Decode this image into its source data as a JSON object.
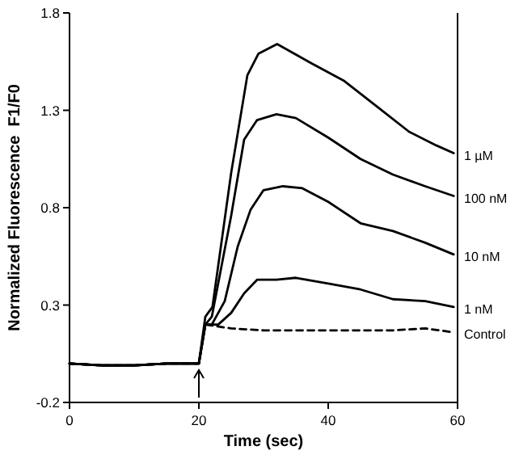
{
  "chart_data": {
    "type": "line",
    "xlabel": "Time (sec)",
    "ylabel": "Normalized Fluorescence  F1/F0",
    "xlim": [
      0,
      60
    ],
    "ylim": [
      -0.2,
      1.8
    ],
    "xticks": [
      0,
      20,
      40,
      60
    ],
    "yticks": [
      -0.2,
      0.3,
      0.8,
      1.3,
      1.8
    ],
    "grid": false,
    "marker": "none",
    "series": [
      {
        "name": "1 µM",
        "color": "#000000",
        "x": [
          0,
          5,
          10,
          15,
          20,
          21,
          22.1,
          25,
          27.5,
          29.2,
          32.1,
          37.5,
          42.5,
          47.5,
          52.5,
          56.7,
          59.4
        ],
        "values": [
          0,
          -0.01,
          -0.01,
          0,
          0,
          0.24,
          0.29,
          0.98,
          1.48,
          1.59,
          1.64,
          1.54,
          1.45,
          1.32,
          1.19,
          1.12,
          1.08
        ]
      },
      {
        "name": "100 nM",
        "color": "#000000",
        "x": [
          0,
          5,
          10,
          15,
          20,
          21,
          22,
          25,
          27,
          29,
          32,
          35,
          40,
          45,
          50,
          55,
          59.4
        ],
        "values": [
          0,
          -0.01,
          -0.01,
          0,
          0,
          0.2,
          0.24,
          0.76,
          1.15,
          1.25,
          1.28,
          1.26,
          1.16,
          1.05,
          0.97,
          0.91,
          0.86
        ]
      },
      {
        "name": "10 nM",
        "color": "#000000",
        "x": [
          0,
          5,
          10,
          15,
          20,
          21,
          22,
          24,
          26,
          28,
          30,
          33,
          36,
          40,
          45,
          50,
          55,
          59.4
        ],
        "values": [
          0,
          -0.01,
          -0.01,
          0,
          0,
          0.2,
          0.2,
          0.32,
          0.6,
          0.79,
          0.89,
          0.91,
          0.9,
          0.83,
          0.72,
          0.68,
          0.62,
          0.56
        ]
      },
      {
        "name": "1 nM",
        "color": "#000000",
        "x": [
          0,
          5,
          10,
          15,
          20,
          21,
          23,
          25,
          27,
          29,
          32,
          35,
          40,
          45,
          50,
          55,
          59.4
        ],
        "values": [
          0,
          -0.01,
          -0.01,
          0,
          0,
          0.2,
          0.2,
          0.26,
          0.36,
          0.43,
          0.43,
          0.44,
          0.41,
          0.38,
          0.33,
          0.32,
          0.29
        ]
      },
      {
        "name": "Control",
        "color": "#000000",
        "line_style": "dashed",
        "x": [
          0,
          5,
          10,
          15,
          20,
          21,
          25,
          30,
          40,
          50,
          55,
          59.4
        ],
        "values": [
          0,
          -0.01,
          -0.01,
          0,
          0,
          0.2,
          0.18,
          0.17,
          0.17,
          0.17,
          0.18,
          0.16
        ]
      }
    ]
  }
}
